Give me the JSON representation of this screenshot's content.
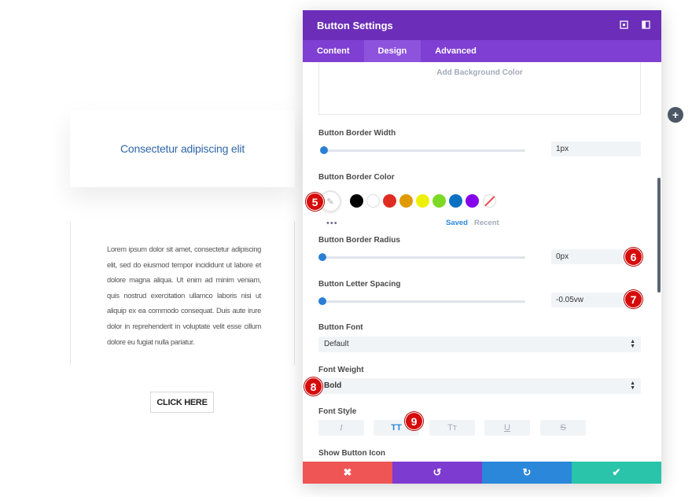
{
  "preview": {
    "hero_text": "Consectetur adipiscing elit",
    "body_text": "Lorem ipsum dolor sit amet, consectetur adipiscing elit, sed do eiusmod tempor incididunt ut labore et dolore magna aliqua. Ut enim ad minim veniam, quis nostrud exercitation ullamco laboris nisi ut aliquip ex ea commodo consequat. Duis aute irure dolor in reprehenderit in voluptate velit esse cillum dolore eu fugiat nulla pariatur.",
    "button_label": "CLICK HERE"
  },
  "panel": {
    "title": "Button Settings",
    "header_icons": [
      "expand-icon",
      "sidebar-toggle-icon"
    ],
    "tabs": [
      {
        "label": "Content",
        "active": false
      },
      {
        "label": "Design",
        "active": true
      },
      {
        "label": "Advanced",
        "active": false
      }
    ],
    "background": {
      "add_label": "Add Background Color"
    },
    "border_width": {
      "label": "Button Border Width",
      "value": "1px",
      "slider_fraction": 0.02
    },
    "border_color": {
      "label": "Button Border Color",
      "swatches": [
        "#000000",
        "#ffffff",
        "#e02b20",
        "#e09900",
        "#edf000",
        "#7cda24",
        "#0c71c3",
        "#8300e9",
        "none"
      ],
      "more_label": "•••",
      "saved_label": "Saved",
      "recent_label": "Recent"
    },
    "border_radius": {
      "label": "Button Border Radius",
      "value": "0px",
      "slider_fraction": 0.0
    },
    "letter_spacing": {
      "label": "Button Letter Spacing",
      "value": "-0.05vw",
      "slider_fraction": 0.0
    },
    "font": {
      "label": "Button Font",
      "value": "Default"
    },
    "font_weight": {
      "label": "Font Weight",
      "value": "Bold"
    },
    "font_style": {
      "label": "Font Style",
      "options": [
        {
          "glyph": "I",
          "name": "italic",
          "active": false
        },
        {
          "glyph": "TT",
          "name": "uppercase",
          "active": true
        },
        {
          "glyph": "Tт",
          "name": "capitalize",
          "active": false
        },
        {
          "glyph": "U",
          "name": "underline",
          "active": false
        },
        {
          "glyph": "S",
          "name": "strikethrough",
          "active": false
        }
      ]
    },
    "show_icon": {
      "label": "Show Button Icon"
    },
    "footer": {
      "cancel": {
        "glyph": "✖",
        "color": "#ef5555"
      },
      "undo": {
        "glyph": "↺",
        "color": "#7e3bd0"
      },
      "redo": {
        "glyph": "↻",
        "color": "#2b87da"
      },
      "save": {
        "glyph": "✔",
        "color": "#29c4a9"
      }
    }
  },
  "annotations": {
    "a5": "5",
    "a6": "6",
    "a7": "7",
    "a8": "8",
    "a9": "9"
  },
  "colors": {
    "header": "#6c2eb9",
    "tabs": "#7f3fd2",
    "accent": "#2b87da",
    "badge": "#d60b0b"
  }
}
